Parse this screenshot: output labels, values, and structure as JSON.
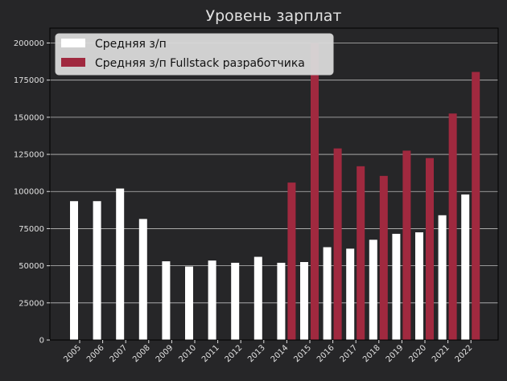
{
  "colors": {
    "background": "#262628",
    "plot_background": "#262628",
    "text": "#e0e0e0",
    "grid": "#bdbdbd",
    "series_avg": "#ffffff",
    "series_fullstack": "#a0293f",
    "legend_bg": "#d9d9d9",
    "legend_text": "#111111"
  },
  "chart_data": {
    "type": "bar",
    "title": "Уровень зарплат",
    "xlabel": "",
    "ylabel": "",
    "categories": [
      "2005",
      "2006",
      "2007",
      "2008",
      "2009",
      "2010",
      "2011",
      "2012",
      "2013",
      "2014",
      "2015",
      "2016",
      "2017",
      "2018",
      "2019",
      "2020",
      "2021",
      "2022"
    ],
    "series": [
      {
        "name": "Средняя з/п",
        "color": "#ffffff",
        "values": [
          93500,
          93500,
          102000,
          81500,
          53000,
          49500,
          53500,
          52000,
          56000,
          52000,
          52500,
          62500,
          61500,
          67500,
          71500,
          72500,
          84000,
          98000
        ]
      },
      {
        "name": "Средняя з/п Fullstack разработчика",
        "color": "#a0293f",
        "values": [
          null,
          null,
          null,
          null,
          null,
          null,
          null,
          null,
          null,
          106000,
          200000,
          129000,
          117000,
          110500,
          127500,
          122500,
          152500,
          180500
        ]
      }
    ],
    "ylim": [
      0,
      210000
    ],
    "yticks": [
      0,
      25000,
      50000,
      75000,
      100000,
      125000,
      150000,
      175000,
      200000
    ],
    "ytick_labels": [
      "0",
      "25000",
      "50000",
      "75000",
      "100000",
      "125000",
      "150000",
      "175000",
      "200000"
    ],
    "grid": "horizontal",
    "legend_position": "top-left"
  }
}
